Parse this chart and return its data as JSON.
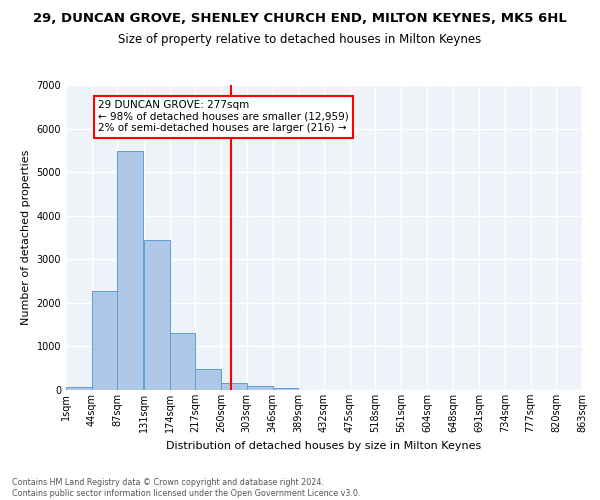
{
  "title1": "29, DUNCAN GROVE, SHENLEY CHURCH END, MILTON KEYNES, MK5 6HL",
  "title2": "Size of property relative to detached houses in Milton Keynes",
  "xlabel": "Distribution of detached houses by size in Milton Keynes",
  "ylabel": "Number of detached properties",
  "footnote": "Contains HM Land Registry data © Crown copyright and database right 2024.\nContains public sector information licensed under the Open Government Licence v3.0.",
  "bin_edges": [
    1,
    44,
    87,
    131,
    174,
    217,
    260,
    303,
    346,
    389,
    432,
    475,
    518,
    561,
    604,
    648,
    691,
    734,
    777,
    820,
    863
  ],
  "bar_heights": [
    75,
    2280,
    5480,
    3440,
    1310,
    475,
    155,
    90,
    55,
    0,
    0,
    0,
    0,
    0,
    0,
    0,
    0,
    0,
    0,
    0
  ],
  "bar_color": "#aec6e8",
  "bar_edgecolor": "#5a9fd4",
  "vline_x": 277,
  "vline_color": "red",
  "annotation_text": "29 DUNCAN GROVE: 277sqm\n← 98% of detached houses are smaller (12,959)\n2% of semi-detached houses are larger (216) →",
  "annotation_box_color": "white",
  "annotation_box_edgecolor": "red",
  "ylim": [
    0,
    7000
  ],
  "bg_color": "#eef2f9",
  "grid_color": "white",
  "title1_fontsize": 9.5,
  "title2_fontsize": 8.5,
  "xlabel_fontsize": 8,
  "ylabel_fontsize": 8,
  "tick_fontsize": 7,
  "annot_fontsize": 7.5,
  "footnote_fontsize": 5.8,
  "tick_labels": [
    "1sqm",
    "44sqm",
    "87sqm",
    "131sqm",
    "174sqm",
    "217sqm",
    "260sqm",
    "303sqm",
    "346sqm",
    "389sqm",
    "432sqm",
    "475sqm",
    "518sqm",
    "561sqm",
    "604sqm",
    "648sqm",
    "691sqm",
    "734sqm",
    "777sqm",
    "820sqm",
    "863sqm"
  ]
}
